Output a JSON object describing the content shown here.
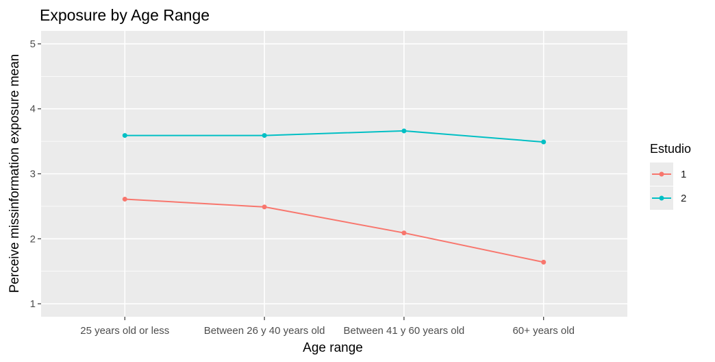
{
  "chart_data": {
    "type": "line",
    "title": "Exposure by Age Range",
    "xlabel": "Age range",
    "ylabel": "Perceive missinformation exposure mean",
    "categories": [
      "25 years old or less",
      "Between 26 y 40 years old",
      "Between 41 y 60 years old",
      "60+ years old"
    ],
    "ylim": [
      0.8,
      5.2
    ],
    "yticks": [
      1,
      2,
      3,
      4,
      5
    ],
    "grid": true,
    "legend": {
      "title": "Estudio",
      "position": "right"
    },
    "series": [
      {
        "name": "1",
        "color": "#F8766D",
        "values": [
          2.61,
          2.49,
          2.09,
          1.64
        ]
      },
      {
        "name": "2",
        "color": "#00BFC4",
        "values": [
          3.59,
          3.59,
          3.66,
          3.49
        ]
      }
    ]
  }
}
